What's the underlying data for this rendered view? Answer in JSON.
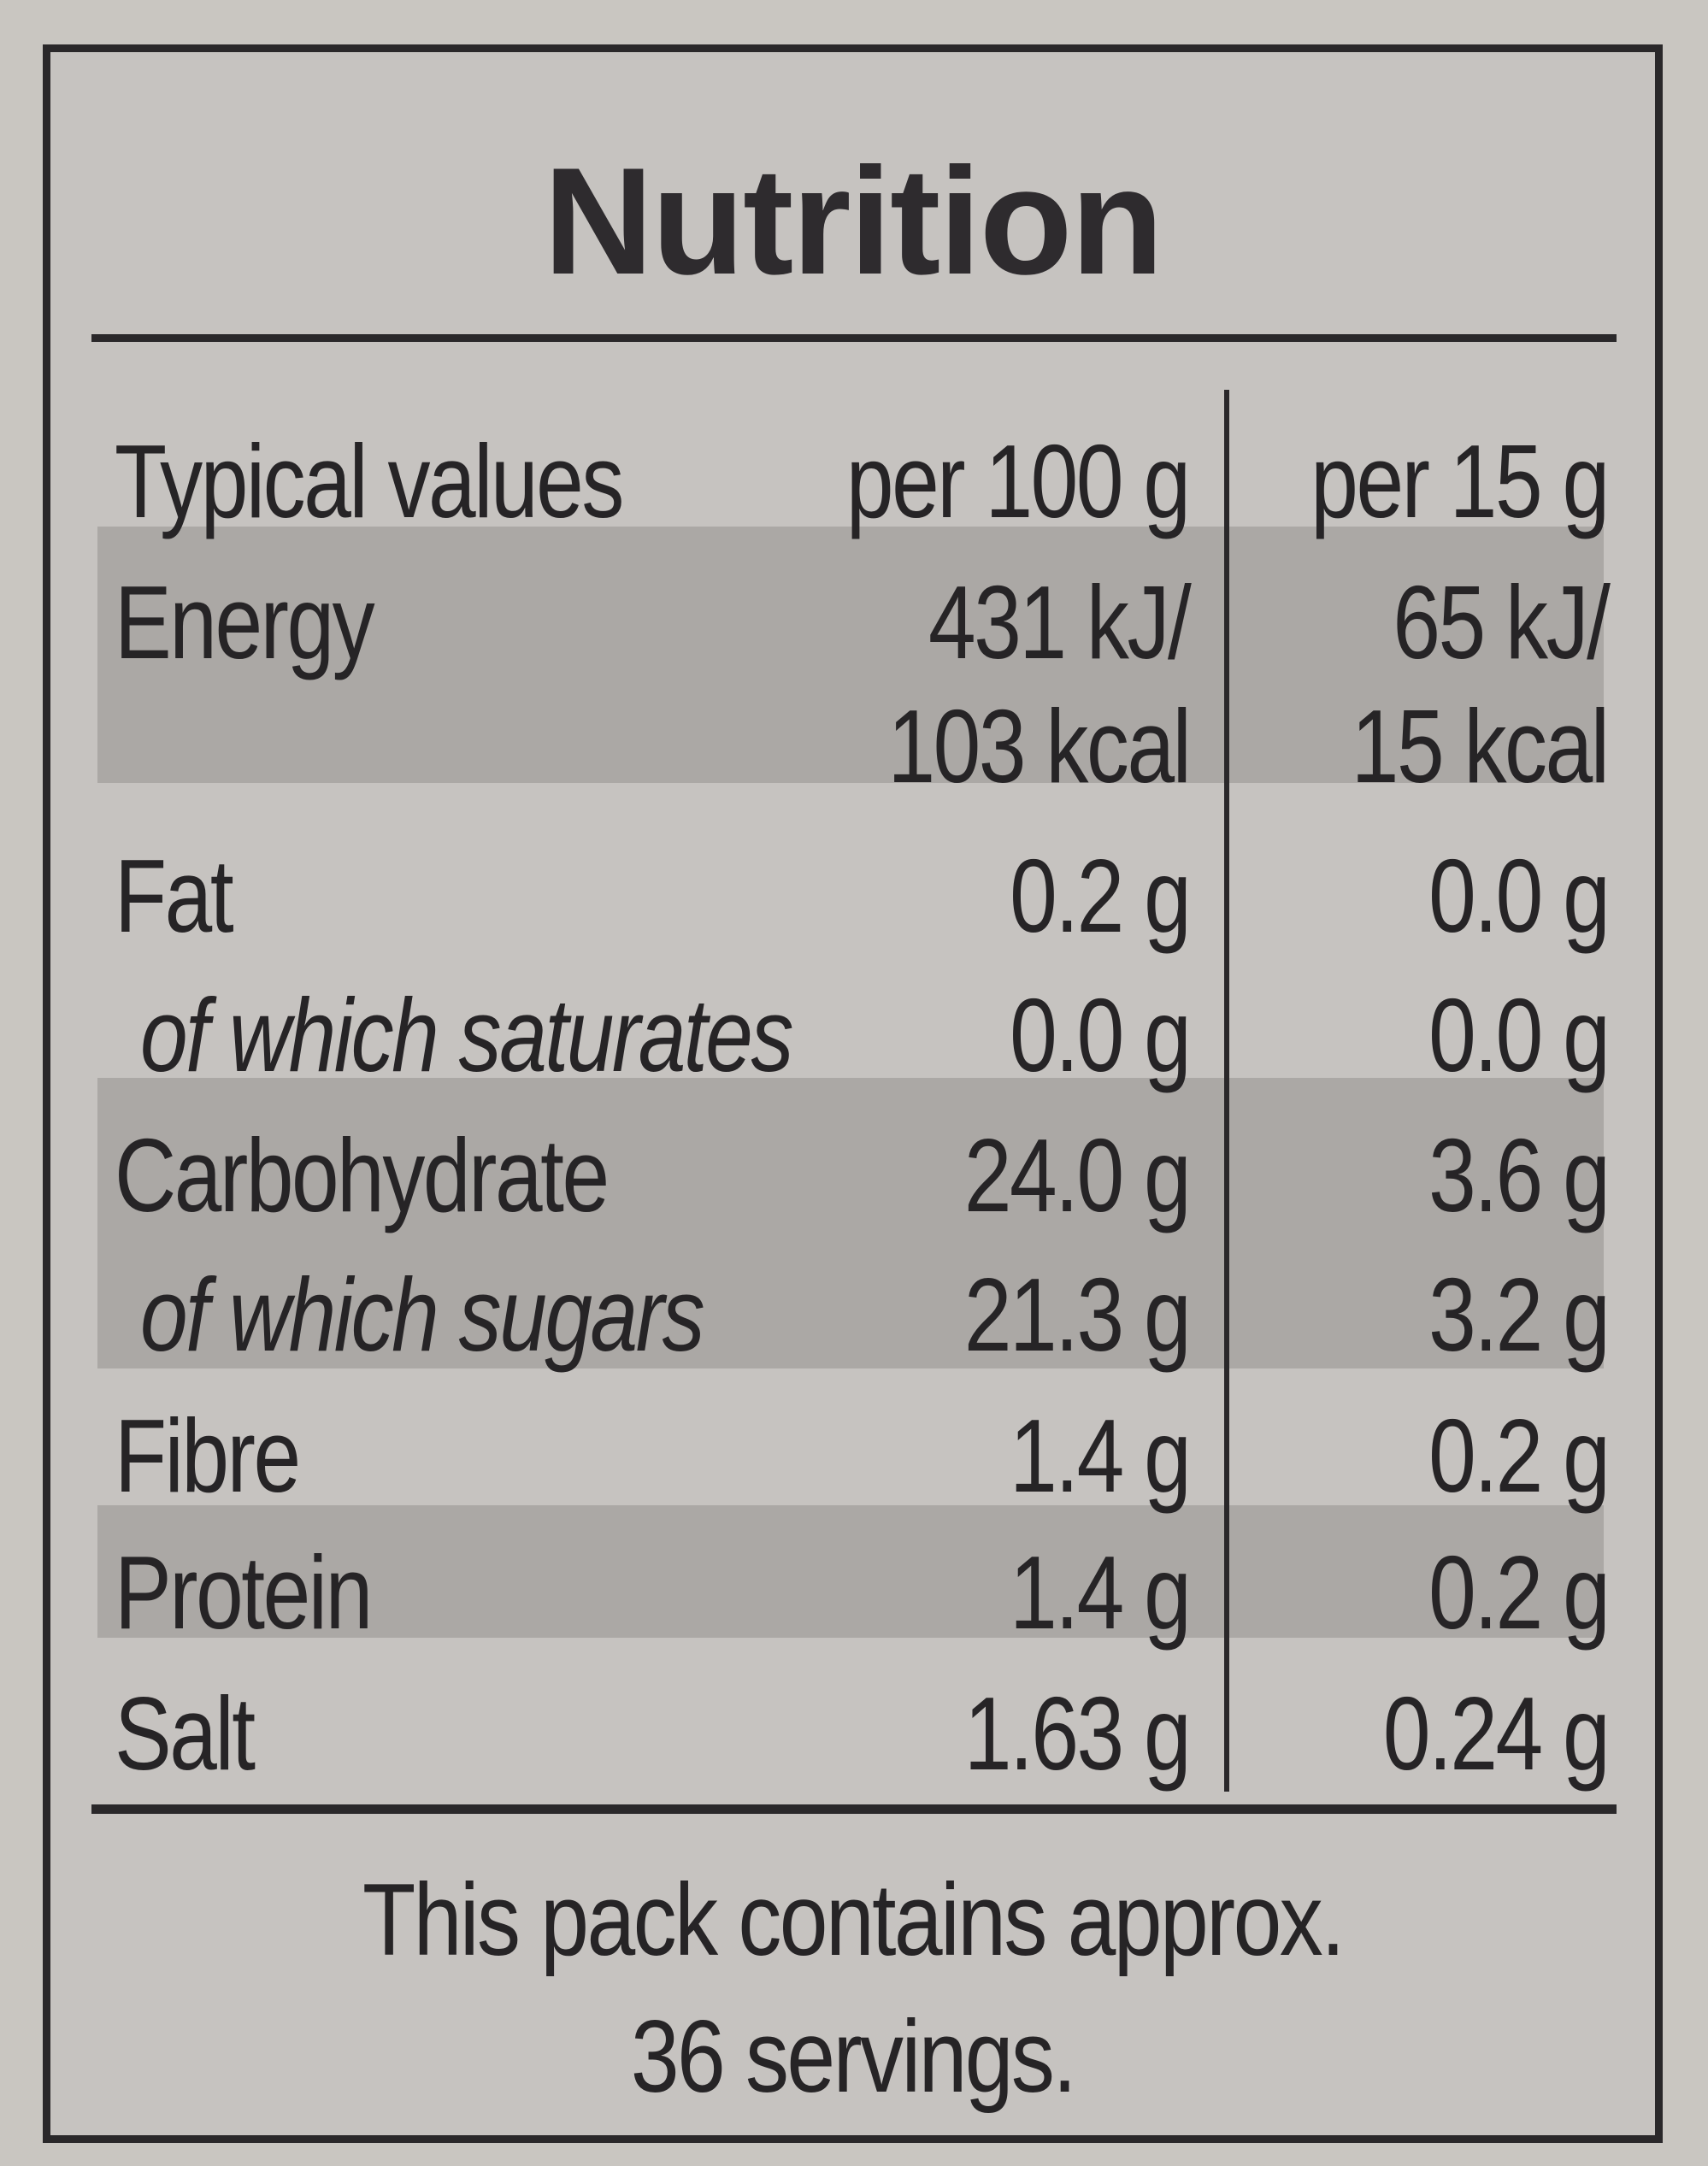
{
  "label": {
    "title": "Nutrition",
    "header": {
      "nutrient": "Typical values",
      "per100": "per 100 g",
      "perserving": "per 15 g"
    },
    "rows": [
      {
        "nutrient": "Energy",
        "per100": "431 kJ/",
        "perserving": "65 kJ/"
      },
      {
        "nutrient": "",
        "per100": "103 kcal",
        "perserving": "15 kcal"
      },
      {
        "nutrient": "Fat",
        "per100": "0.2 g",
        "perserving": "0.0 g"
      },
      {
        "nutrient": "of which saturates",
        "per100": "0.0 g",
        "perserving": "0.0 g"
      },
      {
        "nutrient": "Carbohydrate",
        "per100": "24.0 g",
        "perserving": "3.6 g"
      },
      {
        "nutrient": "of which sugars",
        "per100": "21.3 g",
        "perserving": "3.2 g"
      },
      {
        "nutrient": "Fibre",
        "per100": "1.4 g",
        "perserving": "0.2 g"
      },
      {
        "nutrient": "Protein",
        "per100": "1.4 g",
        "perserving": "0.2 g"
      },
      {
        "nutrient": "Salt",
        "per100": "1.63 g",
        "perserving": "0.24 g"
      }
    ],
    "footer": {
      "line1": "This pack contains approx.",
      "line2": "36 servings."
    }
  }
}
